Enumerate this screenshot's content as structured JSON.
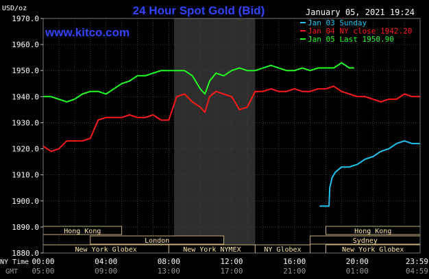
{
  "header": {
    "title": "24 Hour Spot Gold (Bid)",
    "unit": "USD/oz",
    "website": "www.kitco.com",
    "timestamp": "January 05, 2021 19:24"
  },
  "legend": [
    {
      "label": "Jan 03 Sunday",
      "color": "#22c4f0"
    },
    {
      "label": "Jan 04 NY close 1942.20",
      "color": "#ff1a1a"
    },
    {
      "label": "Jan 05 Last 1950.90",
      "color": "#22ff22"
    }
  ],
  "row_labels": {
    "ny_time": "NY Time",
    "gmt": "GMT"
  },
  "sessions": {
    "row1": [
      {
        "label": "Hong Kong",
        "start": 0,
        "end": 5
      },
      {
        "label": "Hong Kong",
        "start": 18,
        "end": 24
      }
    ],
    "row2": [
      {
        "label": "London",
        "start": 3,
        "end": 11.5
      },
      {
        "label": "Sydney",
        "start": 17,
        "end": 24
      }
    ],
    "row3": [
      {
        "label": "New York Globex",
        "start": 0,
        "end": 8
      },
      {
        "label": "New York NYMEX",
        "start": 8,
        "end": 13.5
      },
      {
        "label": "NY Globex",
        "start": 13.5,
        "end": 17
      },
      {
        "label": "New York Globex",
        "start": 18,
        "end": 24
      }
    ]
  },
  "chart_data": {
    "type": "line",
    "title": "24 Hour Spot Gold (Bid)",
    "xlabel": "",
    "ylabel": "USD/oz",
    "xlim": [
      0,
      24
    ],
    "ylim": [
      1880,
      1970
    ],
    "y_ticks": [
      "1880.0",
      "1890.0",
      "1900.0",
      "1910.0",
      "1920.0",
      "1930.0",
      "1940.0",
      "1950.0",
      "1960.0",
      "1970.0"
    ],
    "x_ticks_ny": [
      "00:00",
      "04:00",
      "08:00",
      "12:00",
      "16:00",
      "20:00",
      "23:59"
    ],
    "x_ticks_gmt": [
      "05:00",
      "09:00",
      "13:00",
      "17:00",
      "21:00",
      "01:00",
      "04:59"
    ],
    "nymex_hours": [
      8.33,
      13.5
    ],
    "grid": true,
    "series": [
      {
        "name": "Jan 03 Sunday",
        "color": "#22c4f0",
        "x": [
          17.6,
          18.2,
          18.25,
          18.4,
          18.6,
          19.0,
          19.5,
          20.0,
          20.5,
          21.0,
          21.5,
          22.0,
          22.5,
          23.0,
          23.5,
          23.99
        ],
        "y": [
          1898,
          1898,
          1905,
          1909,
          1911,
          1913,
          1913,
          1914,
          1916,
          1917,
          1919,
          1920,
          1922,
          1923,
          1922,
          1922
        ]
      },
      {
        "name": "Jan 04 NY close 1942.20",
        "color": "#ff1a1a",
        "x": [
          0,
          0.5,
          1.0,
          1.5,
          2.0,
          2.5,
          3.0,
          3.5,
          4.0,
          4.5,
          5.0,
          5.5,
          6.0,
          6.5,
          7.0,
          7.5,
          8.0,
          8.5,
          9.0,
          9.5,
          10.0,
          10.3,
          10.6,
          11.0,
          11.5,
          12.0,
          12.5,
          13.0,
          13.5,
          14.0,
          14.5,
          15.0,
          15.5,
          16.0,
          16.5,
          17.0,
          17.5,
          18.0,
          18.5,
          19.0,
          19.5,
          20.0,
          20.5,
          21.0,
          21.5,
          22.0,
          22.5,
          23.0,
          23.5,
          23.99
        ],
        "y": [
          1921,
          1919,
          1920,
          1923,
          1923,
          1923,
          1924,
          1931,
          1932,
          1932,
          1932,
          1933,
          1932,
          1932,
          1933,
          1931,
          1931,
          1940,
          1941,
          1938,
          1936,
          1934,
          1940,
          1942,
          1941,
          1940,
          1935,
          1936,
          1942,
          1942,
          1943,
          1942,
          1942,
          1943,
          1942,
          1942,
          1943,
          1943,
          1944,
          1942,
          1941,
          1940,
          1940,
          1939,
          1938,
          1939,
          1939,
          1941,
          1940,
          1940
        ]
      },
      {
        "name": "Jan 05 Last 1950.90",
        "color": "#22ff22",
        "x": [
          0,
          0.5,
          1.0,
          1.5,
          2.0,
          2.5,
          3.0,
          3.5,
          4.0,
          4.5,
          5.0,
          5.5,
          6.0,
          6.5,
          7.0,
          7.5,
          8.0,
          8.5,
          9.0,
          9.5,
          10.0,
          10.3,
          10.6,
          11.0,
          11.5,
          12.0,
          12.5,
          13.0,
          13.5,
          14.0,
          14.5,
          15.0,
          15.5,
          16.0,
          16.5,
          17.0,
          17.5,
          18.0,
          18.5,
          19.0,
          19.5,
          19.8
        ],
        "y": [
          1940,
          1940,
          1939,
          1938,
          1939,
          1941,
          1942,
          1942,
          1941,
          1943,
          1945,
          1946,
          1948,
          1948,
          1949,
          1950,
          1950,
          1950,
          1950,
          1948,
          1943,
          1941,
          1946,
          1949,
          1948,
          1950,
          1951,
          1950,
          1950,
          1951,
          1952,
          1951,
          1950,
          1950,
          1951,
          1950,
          1951,
          1951,
          1951,
          1953,
          1951,
          1951
        ]
      }
    ]
  }
}
